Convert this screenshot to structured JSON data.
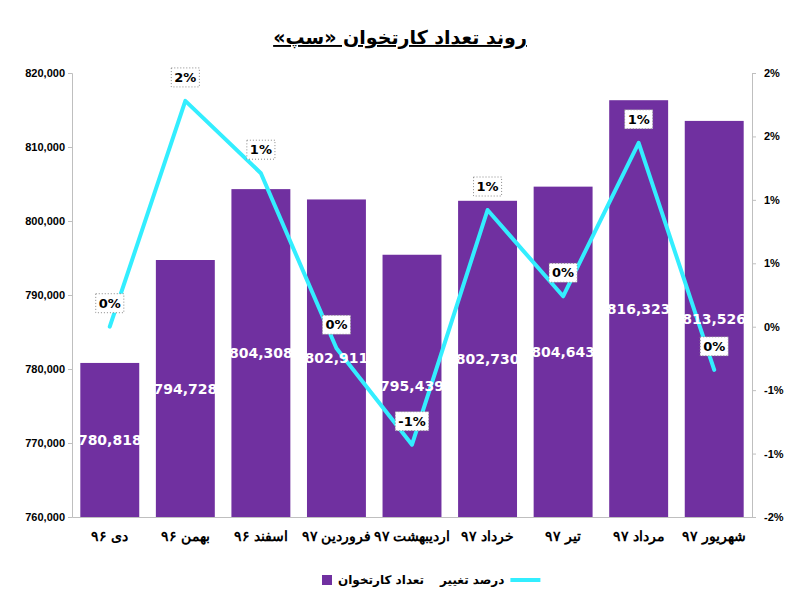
{
  "chart_data": {
    "type": "bar",
    "title": "روند تعداد کارتخوان «سپ»",
    "categories": [
      "دی ۹۶",
      "بهمن ۹۶",
      "اسفند ۹۶",
      "فروردین ۹۷",
      "اردیبهشت ۹۷",
      "خرداد ۹۷",
      "تیر ۹۷",
      "مرداد ۹۷",
      "شهریور ۹۷"
    ],
    "series": [
      {
        "name": "تعداد کارتخوان",
        "type": "bar",
        "color": "#7030a0",
        "values": [
          780818,
          794728,
          804308,
          802911,
          795439,
          802730,
          804643,
          816323,
          813526
        ],
        "value_labels": [
          "780,818",
          "794,728",
          "804,308",
          "802,911",
          "795,439",
          "802,730",
          "804,643",
          "816,323",
          "813,526"
        ]
      },
      {
        "name": "درصد تغییر",
        "type": "line",
        "axis": "y2",
        "color": "#33eeff",
        "values": [
          0,
          1.78,
          1.21,
          -0.17,
          -0.93,
          0.92,
          0.24,
          1.45,
          -0.34
        ],
        "value_labels": [
          "0%",
          "2%",
          "1%",
          "0%",
          "-1%",
          "1%",
          "0%",
          "1%",
          "0%"
        ]
      }
    ],
    "ylim": [
      760000,
      820000
    ],
    "yticks": [
      {
        "value": 760000,
        "label": "760,000"
      },
      {
        "value": 770000,
        "label": "770,000"
      },
      {
        "value": 780000,
        "label": "780,000"
      },
      {
        "value": 790000,
        "label": "790,000"
      },
      {
        "value": 800000,
        "label": "800,000"
      },
      {
        "value": 810000,
        "label": "810,000"
      },
      {
        "value": 820000,
        "label": "820,000"
      }
    ],
    "y2lim": [
      -1.5,
      2
    ],
    "y2ticks": [
      {
        "value": -1.5,
        "label": "-2%"
      },
      {
        "value": -1,
        "label": "-1%"
      },
      {
        "value": -0.5,
        "label": "-1%"
      },
      {
        "value": 0,
        "label": "0%"
      },
      {
        "value": 0.5,
        "label": "1%"
      },
      {
        "value": 1,
        "label": "1%"
      },
      {
        "value": 1.5,
        "label": "2%"
      },
      {
        "value": 2,
        "label": "2%"
      }
    ],
    "data_labels": true,
    "legend": "bottom",
    "grid": false
  }
}
